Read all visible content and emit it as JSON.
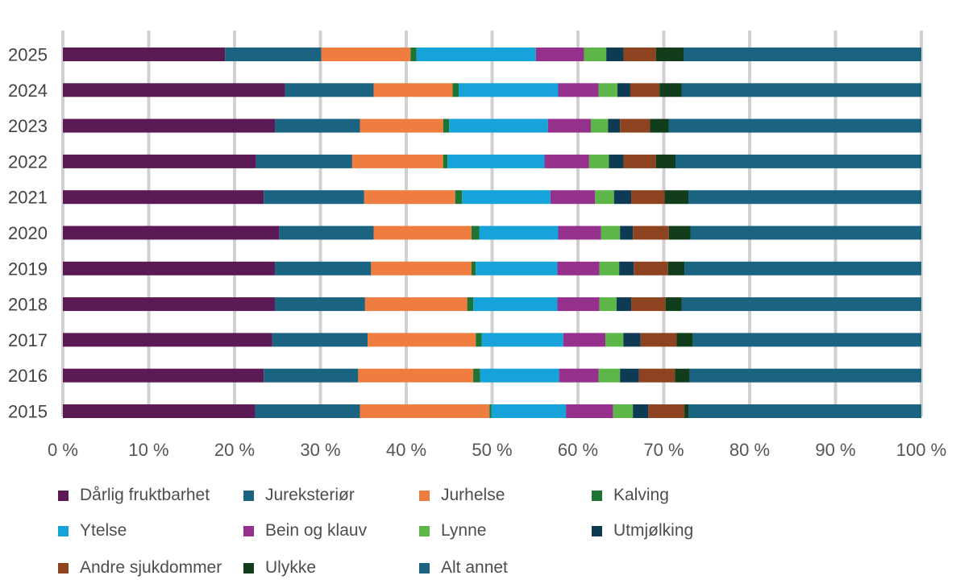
{
  "chart_data": {
    "type": "bar",
    "orientation": "horizontal",
    "stacked": true,
    "normalized": true,
    "categories": [
      "2025",
      "2024",
      "2023",
      "2022",
      "2021",
      "2020",
      "2019",
      "2018",
      "2017",
      "2016",
      "2015"
    ],
    "xlim": [
      0,
      100
    ],
    "xticks": [
      0,
      10,
      20,
      30,
      40,
      50,
      60,
      70,
      80,
      90,
      100
    ],
    "xtick_labels": [
      "0 %",
      "10 %",
      "20 %",
      "30 %",
      "40 %",
      "50 %",
      "60 %",
      "70 %",
      "80 %",
      "90 %",
      "100 %"
    ],
    "grid": "vertical",
    "legend_position": "bottom",
    "series": [
      {
        "name": "Dårlig fruktbarhet",
        "color": "#5b1a55",
        "values": [
          18.9,
          25.9,
          24.7,
          22.5,
          23.4,
          25.2,
          24.7,
          24.7,
          24.4,
          23.4,
          22.4
        ]
      },
      {
        "name": "Jureksteriør",
        "color": "#1b6481",
        "values": [
          11.2,
          10.3,
          9.9,
          11.2,
          11.7,
          11.0,
          11.2,
          10.5,
          11.1,
          11.0,
          12.2
        ]
      },
      {
        "name": "Jurhelse",
        "color": "#ef7d3f",
        "values": [
          10.4,
          9.2,
          9.7,
          10.6,
          10.6,
          11.4,
          11.7,
          11.9,
          12.6,
          13.4,
          15.1
        ]
      },
      {
        "name": "Kalving",
        "color": "#1d7433",
        "values": [
          0.7,
          0.7,
          0.7,
          0.5,
          0.8,
          0.9,
          0.5,
          0.7,
          0.7,
          0.8,
          0.2
        ]
      },
      {
        "name": "Ytelse",
        "color": "#16a3d9",
        "values": [
          13.9,
          11.6,
          11.5,
          11.3,
          10.3,
          9.2,
          9.5,
          9.8,
          9.5,
          9.2,
          8.7
        ]
      },
      {
        "name": "Bein og klauv",
        "color": "#95318d",
        "values": [
          5.6,
          4.7,
          5.0,
          5.2,
          5.2,
          5.0,
          4.9,
          4.9,
          4.9,
          4.6,
          5.5
        ]
      },
      {
        "name": "Lynne",
        "color": "#5cb648",
        "values": [
          2.6,
          2.2,
          2.0,
          2.3,
          2.2,
          2.2,
          2.3,
          2.0,
          2.1,
          2.5,
          2.3
        ]
      },
      {
        "name": "Utmjølking",
        "color": "#0e3a53",
        "values": [
          2.0,
          1.5,
          1.4,
          1.7,
          2.0,
          1.5,
          1.7,
          1.7,
          2.0,
          2.2,
          1.8
        ]
      },
      {
        "name": "Andre sjukdommer",
        "color": "#8e4320",
        "values": [
          3.8,
          3.4,
          3.5,
          3.8,
          3.9,
          4.2,
          4.0,
          4.0,
          4.2,
          4.2,
          4.2
        ]
      },
      {
        "name": "Ulykke",
        "color": "#123d1c",
        "values": [
          3.2,
          2.6,
          2.2,
          2.3,
          2.8,
          2.5,
          1.9,
          1.9,
          1.9,
          1.7,
          0.5
        ]
      },
      {
        "name": "Alt annet",
        "color": "#1b6481",
        "values": [
          27.7,
          27.9,
          29.4,
          28.6,
          27.1,
          26.9,
          27.6,
          27.9,
          26.6,
          27.0,
          27.1
        ]
      }
    ]
  }
}
